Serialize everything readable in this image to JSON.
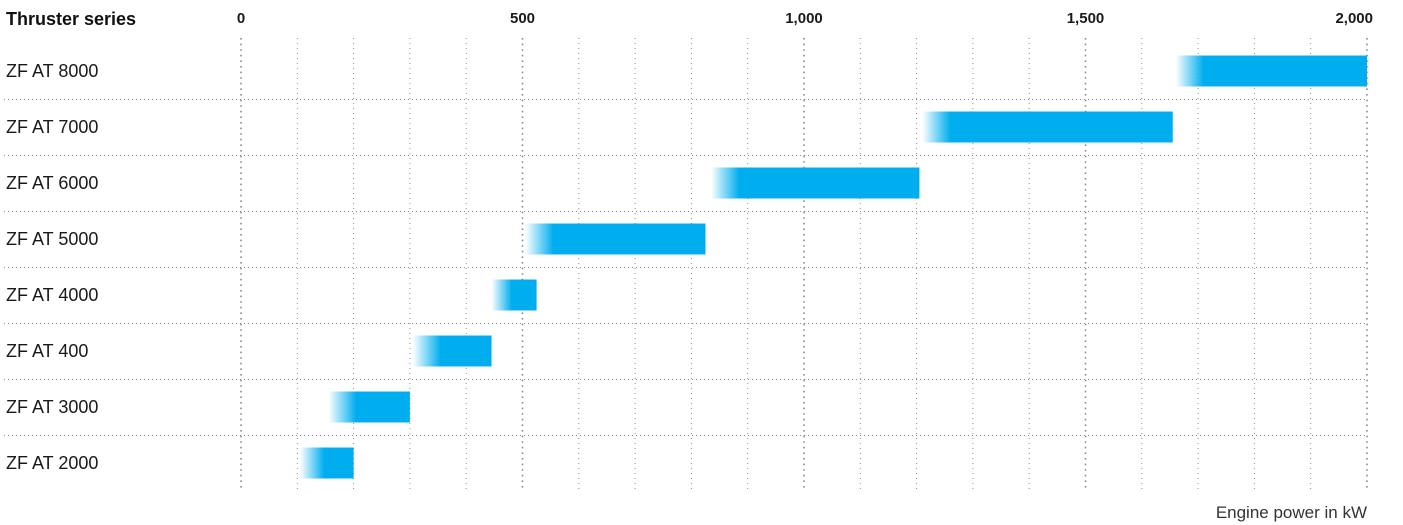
{
  "colors": {
    "bar": "#00aeef",
    "grid": "#8c8c8c",
    "text": "#1a1a1a"
  },
  "chart_data": {
    "type": "bar",
    "orientation": "horizontal",
    "style": "floating range bars with a fading left edge",
    "header": "Thruster series",
    "xlabel": "Engine power in kW",
    "xlim": [
      0,
      2000
    ],
    "xticks": [
      0,
      500,
      1000,
      1500,
      2000
    ],
    "xtick_labels": [
      "0",
      "500",
      "1,000",
      "1,500",
      "2,000"
    ],
    "minor_grid_step": 100,
    "grid": true,
    "categories": [
      "ZF AT 8000",
      "ZF AT 7000",
      "ZF AT 6000",
      "ZF AT 5000",
      "ZF AT 4000",
      "ZF AT 400",
      "ZF AT 3000",
      "ZF AT 2000"
    ],
    "ranges": [
      [
        1660,
        2000
      ],
      [
        1210,
        1655
      ],
      [
        835,
        1205
      ],
      [
        505,
        825
      ],
      [
        445,
        525
      ],
      [
        305,
        445
      ],
      [
        155,
        300
      ],
      [
        105,
        200
      ]
    ]
  }
}
